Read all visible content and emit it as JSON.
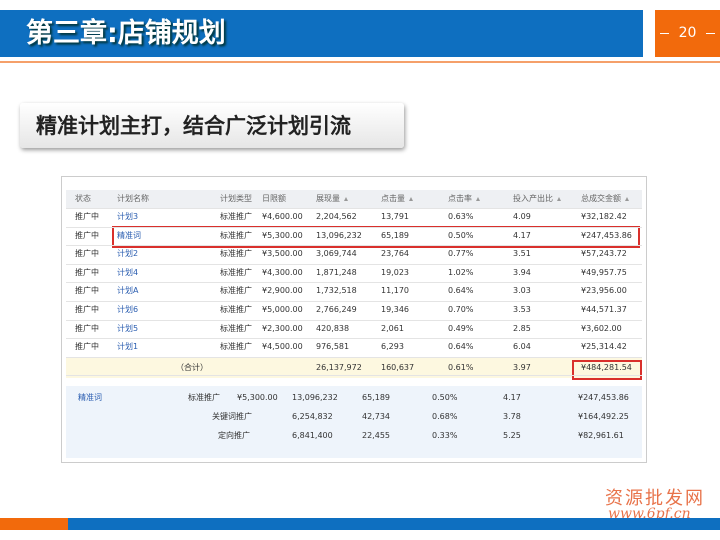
{
  "header": {
    "title": "第三章:店铺规划",
    "page": "20"
  },
  "subtitle": "精准计划主打，结合广泛计划引流",
  "table": {
    "columns": [
      "状态",
      "计划名称",
      "计划类型",
      "日限额",
      "展现量",
      "点击量",
      "点击率",
      "投入产出比",
      "总成交金额"
    ],
    "rows": [
      [
        "推广中",
        "计划3",
        "标准推广",
        "¥4,600.00",
        "2,204,562",
        "13,791",
        "0.63%",
        "4.09",
        "¥32,182.42"
      ],
      [
        "推广中",
        "精准词",
        "标准推广",
        "¥5,300.00",
        "13,096,232",
        "65,189",
        "0.50%",
        "4.17",
        "¥247,453.86"
      ],
      [
        "推广中",
        "计划2",
        "标准推广",
        "¥3,500.00",
        "3,069,744",
        "23,764",
        "0.77%",
        "3.51",
        "¥57,243.72"
      ],
      [
        "推广中",
        "计划4",
        "标准推广",
        "¥4,300.00",
        "1,871,248",
        "19,023",
        "1.02%",
        "3.94",
        "¥49,957.75"
      ],
      [
        "推广中",
        "计划A",
        "标准推广",
        "¥2,900.00",
        "1,732,518",
        "11,170",
        "0.64%",
        "3.03",
        "¥23,956.00"
      ],
      [
        "推广中",
        "计划6",
        "标准推广",
        "¥5,000.00",
        "2,766,249",
        "19,346",
        "0.70%",
        "3.53",
        "¥44,571.37"
      ],
      [
        "推广中",
        "计划5",
        "标准推广",
        "¥2,300.00",
        "420,838",
        "2,061",
        "0.49%",
        "2.85",
        "¥3,602.00"
      ],
      [
        "推广中",
        "计划1",
        "标准推广",
        "¥4,500.00",
        "976,581",
        "6,293",
        "0.64%",
        "6.04",
        "¥25,314.42"
      ]
    ],
    "total": [
      "（合计）",
      "26,137,972",
      "160,637",
      "0.61%",
      "3.97",
      "¥484,281.54"
    ]
  },
  "detail": {
    "plan": [
      "精准词",
      "标准推广",
      "¥5,300.00",
      "13,096,232",
      "65,189",
      "0.50%",
      "4.17",
      "¥247,453.86"
    ],
    "rows": [
      [
        "关键词推广",
        "6,254,832",
        "42,734",
        "0.68%",
        "3.78",
        "¥164,492.25"
      ],
      [
        "定向推广",
        "6,841,400",
        "22,455",
        "0.33%",
        "5.25",
        "¥82,961.61"
      ]
    ]
  },
  "watermark": {
    "name": "资源批发网",
    "url": "www.6pf.cn"
  }
}
